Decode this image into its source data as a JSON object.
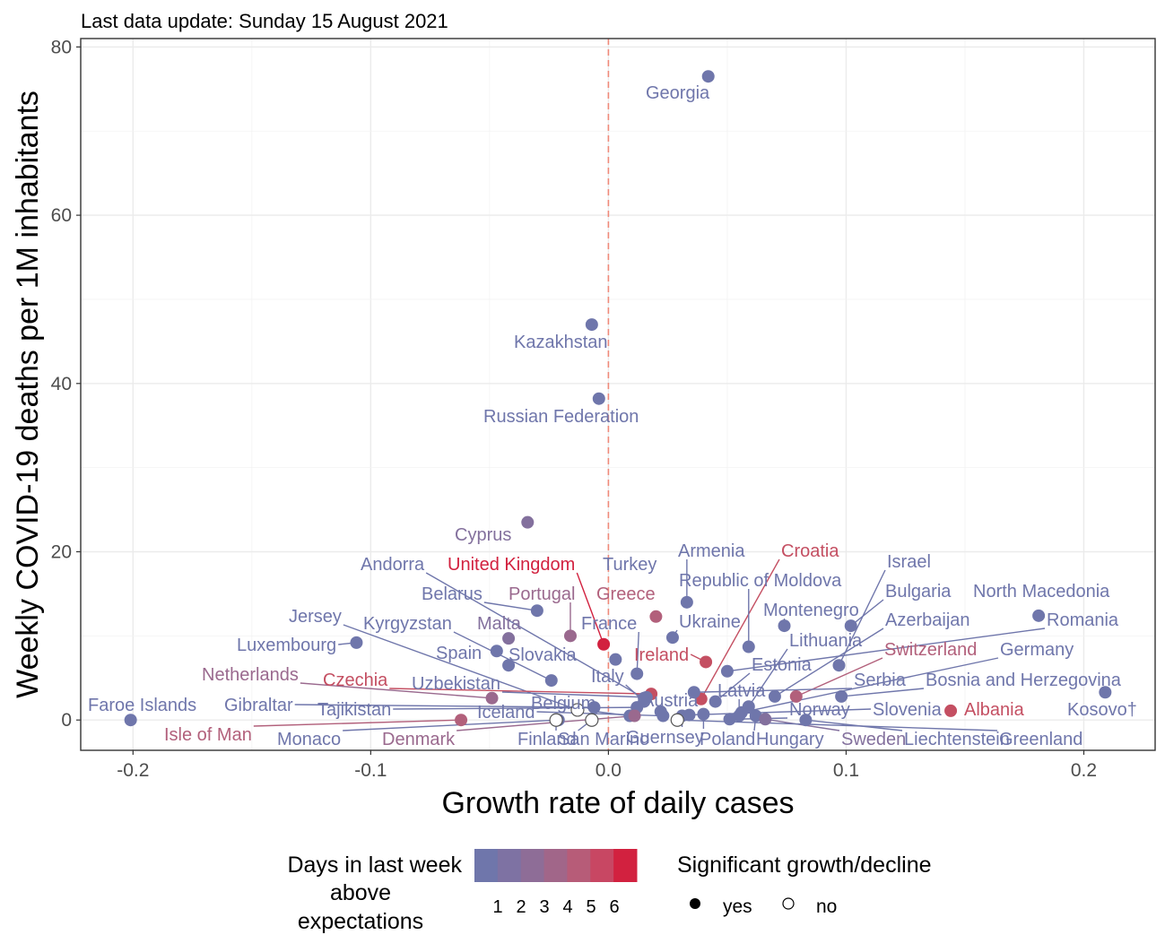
{
  "chart_data": {
    "type": "scatter",
    "subtitle": "Last data update: Sunday 15 August 2021",
    "xlabel": "Growth rate of daily cases",
    "ylabel": "Weekly COVID-19 deaths per 1M inhabitants",
    "xlim": [
      -0.222,
      0.23
    ],
    "ylim": [
      -3.6,
      81
    ],
    "x_ticks": [
      -0.2,
      -0.1,
      0.0,
      0.1,
      0.2
    ],
    "x_tick_labels": [
      "-0.2",
      "-0.1",
      "0.0",
      "0.1",
      "0.2"
    ],
    "y_ticks": [
      0,
      20,
      40,
      60,
      80
    ],
    "y_tick_labels": [
      "0",
      "20",
      "40",
      "60",
      "80"
    ],
    "grid": true,
    "reference_line": {
      "x": 0,
      "style": "dashed",
      "color": "#f08a7a"
    },
    "colors": {
      "1": "#6f76ab",
      "2": "#83709d",
      "3": "#9a698e",
      "4": "#b2607b",
      "5": "#c44f62",
      "6": "#d2213f"
    },
    "legend": {
      "color_title_lines": [
        "Days in last week",
        "above",
        "expectations"
      ],
      "color_ticks": [
        "1",
        "2",
        "3",
        "4",
        "5",
        "6"
      ],
      "shape_title": "Significant growth/decline",
      "shape_keys": [
        "yes",
        "no"
      ],
      "placement": "bottom"
    },
    "series": [
      {
        "name": "Georgia",
        "x": 0.042,
        "y": 76.5,
        "days": 1,
        "significant": true
      },
      {
        "name": "Kazakhstan",
        "x": -0.007,
        "y": 47.0,
        "days": 1,
        "significant": true
      },
      {
        "name": "Russian Federation",
        "x": -0.004,
        "y": 38.2,
        "days": 1,
        "significant": true
      },
      {
        "name": "Cyprus",
        "x": -0.034,
        "y": 23.5,
        "days": 2,
        "significant": true
      },
      {
        "name": "Armenia",
        "x": 0.033,
        "y": 14.0,
        "days": 1,
        "significant": true
      },
      {
        "name": "Turkey",
        "x": 0.003,
        "y": 7.2,
        "days": 1,
        "significant": true
      },
      {
        "name": "Croatia",
        "x": 0.039,
        "y": 2.5,
        "days": 5,
        "significant": true
      },
      {
        "name": "Andorra",
        "x": 0.015,
        "y": 2.6,
        "days": 1,
        "significant": true
      },
      {
        "name": "United Kingdom",
        "x": -0.002,
        "y": 9.0,
        "days": 6,
        "significant": true
      },
      {
        "name": "Israel",
        "x": 0.097,
        "y": 6.5,
        "days": 1,
        "significant": true
      },
      {
        "name": "Belarus",
        "x": -0.03,
        "y": 13.0,
        "days": 1,
        "significant": true
      },
      {
        "name": "Portugal",
        "x": -0.016,
        "y": 10.0,
        "days": 3,
        "significant": true
      },
      {
        "name": "Greece",
        "x": 0.02,
        "y": 12.3,
        "days": 4,
        "significant": true
      },
      {
        "name": "Republic of Moldova",
        "x": 0.059,
        "y": 8.7,
        "days": 1,
        "significant": true
      },
      {
        "name": "Bulgaria",
        "x": 0.102,
        "y": 11.2,
        "days": 1,
        "significant": true
      },
      {
        "name": "North Macedonia",
        "x": 0.181,
        "y": 12.4,
        "days": 1,
        "significant": true
      },
      {
        "name": "Jersey",
        "x": -0.013,
        "y": 1.2,
        "days": 1,
        "significant": false
      },
      {
        "name": "Kyrgyzstan",
        "x": -0.024,
        "y": 4.7,
        "days": 1,
        "significant": true
      },
      {
        "name": "Malta",
        "x": -0.042,
        "y": 9.7,
        "days": 2,
        "significant": true
      },
      {
        "name": "France",
        "x": 0.012,
        "y": 5.5,
        "days": 1,
        "significant": true
      },
      {
        "name": "Ukraine",
        "x": 0.027,
        "y": 9.8,
        "days": 1,
        "significant": true
      },
      {
        "name": "Montenegro",
        "x": 0.074,
        "y": 11.2,
        "days": 1,
        "significant": true
      },
      {
        "name": "Azerbaijan",
        "x": 0.07,
        "y": 2.8,
        "days": 1,
        "significant": true
      },
      {
        "name": "Romania",
        "x": 0.05,
        "y": 5.8,
        "days": 1,
        "significant": true
      },
      {
        "name": "Luxembourg",
        "x": -0.106,
        "y": 9.2,
        "days": 1,
        "significant": true
      },
      {
        "name": "Spain",
        "x": -0.047,
        "y": 8.2,
        "days": 1,
        "significant": true
      },
      {
        "name": "Slovakia",
        "x": -0.042,
        "y": 6.5,
        "days": 1,
        "significant": true
      },
      {
        "name": "Ireland",
        "x": 0.041,
        "y": 6.9,
        "days": 5,
        "significant": true
      },
      {
        "name": "Lithuania",
        "x": 0.059,
        "y": 1.6,
        "days": 1,
        "significant": true
      },
      {
        "name": "Switzerland",
        "x": 0.079,
        "y": 2.8,
        "days": 4,
        "significant": true
      },
      {
        "name": "Germany",
        "x": 0.056,
        "y": 0.9,
        "days": 1,
        "significant": true
      },
      {
        "name": "Netherlands",
        "x": -0.049,
        "y": 2.6,
        "days": 3,
        "significant": true
      },
      {
        "name": "Czechia",
        "x": 0.018,
        "y": 3.1,
        "days": 5,
        "significant": true
      },
      {
        "name": "Uzbekistan",
        "x": 0.016,
        "y": 2.7,
        "days": 1,
        "significant": true
      },
      {
        "name": "Italy",
        "x": 0.015,
        "y": 2.2,
        "days": 1,
        "significant": true
      },
      {
        "name": "Estonia",
        "x": 0.045,
        "y": 2.2,
        "days": 1,
        "significant": true
      },
      {
        "name": "Serbia",
        "x": 0.036,
        "y": 3.3,
        "days": 1,
        "significant": true
      },
      {
        "name": "Bosnia and Herzegovina",
        "x": 0.098,
        "y": 2.8,
        "days": 1,
        "significant": true
      },
      {
        "name": "Faroe Islands",
        "x": -0.201,
        "y": 0.0,
        "days": 1,
        "significant": true
      },
      {
        "name": "Gibraltar",
        "x": -0.006,
        "y": 1.5,
        "days": 1,
        "significant": true
      },
      {
        "name": "Tajikistan",
        "x": 0.012,
        "y": 1.5,
        "days": 1,
        "significant": true
      },
      {
        "name": "Belgium",
        "x": 0.009,
        "y": 0.5,
        "days": 1,
        "significant": true
      },
      {
        "name": "Iceland",
        "x": 0.023,
        "y": 0.5,
        "days": 1,
        "significant": true
      },
      {
        "name": "Austria",
        "x": 0.022,
        "y": 1.0,
        "days": 1,
        "significant": true
      },
      {
        "name": "Latvia",
        "x": 0.055,
        "y": 0.5,
        "days": 1,
        "significant": true
      },
      {
        "name": "Norway",
        "x": 0.051,
        "y": 0.1,
        "days": 1,
        "significant": true
      },
      {
        "name": "Slovenia",
        "x": 0.034,
        "y": 0.6,
        "days": 1,
        "significant": true
      },
      {
        "name": "Albania",
        "x": 0.144,
        "y": 1.1,
        "days": 5,
        "significant": true
      },
      {
        "name": "Kosovo†",
        "x": 0.209,
        "y": 3.3,
        "days": 1,
        "significant": true
      },
      {
        "name": "Isle of Man",
        "x": -0.062,
        "y": 0.0,
        "days": 4,
        "significant": true
      },
      {
        "name": "Monaco",
        "x": -0.021,
        "y": 0.0,
        "days": 1,
        "significant": true
      },
      {
        "name": "Denmark",
        "x": 0.011,
        "y": 0.5,
        "days": 3,
        "significant": true
      },
      {
        "name": "Finland",
        "x": -0.007,
        "y": 0.0,
        "days": 1,
        "significant": false
      },
      {
        "name": "San Marino",
        "x": -0.022,
        "y": 0.0,
        "days": 1,
        "significant": false
      },
      {
        "name": "Guernsey",
        "x": 0.031,
        "y": 0.5,
        "days": 1,
        "significant": true
      },
      {
        "name": "Poland",
        "x": 0.04,
        "y": 0.7,
        "days": 1,
        "significant": true
      },
      {
        "name": "Hungary",
        "x": 0.062,
        "y": 0.5,
        "days": 1,
        "significant": true
      },
      {
        "name": "Sweden",
        "x": 0.066,
        "y": 0.1,
        "days": 2,
        "significant": true
      },
      {
        "name": "Liechtenstein",
        "x": 0.083,
        "y": 0.0,
        "days": 1,
        "significant": true
      },
      {
        "name": "Greenland",
        "x": 0.029,
        "y": 0.0,
        "days": 1,
        "significant": false
      }
    ]
  }
}
